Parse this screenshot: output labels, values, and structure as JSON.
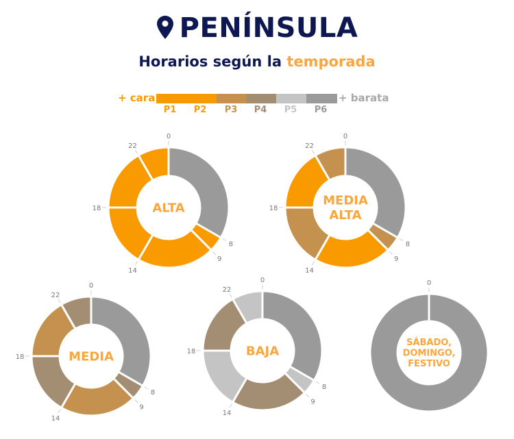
{
  "header": {
    "title": "PENÍNSULA",
    "icon": "map-pin-icon",
    "subtitle_prefix": "Horarios según la",
    "subtitle_highlight": "temporada"
  },
  "legend": {
    "left": "+ cara",
    "right": "+ barata",
    "periods": [
      {
        "label": "P1",
        "color": "#f99a00"
      },
      {
        "label": "P2",
        "color": "#f99a00"
      },
      {
        "label": "P3",
        "color": "#c4914f"
      },
      {
        "label": "P4",
        "color": "#a38d73"
      },
      {
        "label": "P5",
        "color": "#c4c4c4"
      },
      {
        "label": "P6",
        "color": "#9a9a9a"
      }
    ]
  },
  "colors": {
    "title": "#0d1752",
    "accent": "#fba63c"
  },
  "chart_data": [
    {
      "type": "donut",
      "title": "ALTA",
      "hour_ticks": [
        0,
        8,
        9,
        14,
        18,
        22
      ],
      "segments": [
        {
          "from": 0,
          "to": 8,
          "period": "P6"
        },
        {
          "from": 8,
          "to": 9,
          "period": "P2"
        },
        {
          "from": 9,
          "to": 14,
          "period": "P1"
        },
        {
          "from": 14,
          "to": 18,
          "period": "P2"
        },
        {
          "from": 18,
          "to": 22,
          "period": "P1"
        },
        {
          "from": 22,
          "to": 24,
          "period": "P2"
        }
      ]
    },
    {
      "type": "donut",
      "title": "MEDIA ALTA",
      "hour_ticks": [
        0,
        8,
        9,
        14,
        18,
        22
      ],
      "segments": [
        {
          "from": 0,
          "to": 8,
          "period": "P6"
        },
        {
          "from": 8,
          "to": 9,
          "period": "P3"
        },
        {
          "from": 9,
          "to": 14,
          "period": "P2"
        },
        {
          "from": 14,
          "to": 18,
          "period": "P3"
        },
        {
          "from": 18,
          "to": 22,
          "period": "P2"
        },
        {
          "from": 22,
          "to": 24,
          "period": "P3"
        }
      ]
    },
    {
      "type": "donut",
      "title": "MEDIA",
      "hour_ticks": [
        0,
        8,
        9,
        14,
        18,
        22
      ],
      "segments": [
        {
          "from": 0,
          "to": 8,
          "period": "P6"
        },
        {
          "from": 8,
          "to": 9,
          "period": "P4"
        },
        {
          "from": 9,
          "to": 14,
          "period": "P3"
        },
        {
          "from": 14,
          "to": 18,
          "period": "P4"
        },
        {
          "from": 18,
          "to": 22,
          "period": "P3"
        },
        {
          "from": 22,
          "to": 24,
          "period": "P4"
        }
      ]
    },
    {
      "type": "donut",
      "title": "BAJA",
      "hour_ticks": [
        0,
        8,
        9,
        14,
        18,
        22
      ],
      "segments": [
        {
          "from": 0,
          "to": 8,
          "period": "P6"
        },
        {
          "from": 8,
          "to": 9,
          "period": "P5"
        },
        {
          "from": 9,
          "to": 14,
          "period": "P4"
        },
        {
          "from": 14,
          "to": 18,
          "period": "P5"
        },
        {
          "from": 18,
          "to": 22,
          "period": "P4"
        },
        {
          "from": 22,
          "to": 24,
          "period": "P5"
        }
      ]
    },
    {
      "type": "donut",
      "title": "SÁBADO, DOMINGO, FESTIVO",
      "hour_ticks": [
        0
      ],
      "segments": [
        {
          "from": 0,
          "to": 24,
          "period": "P6"
        }
      ]
    }
  ]
}
